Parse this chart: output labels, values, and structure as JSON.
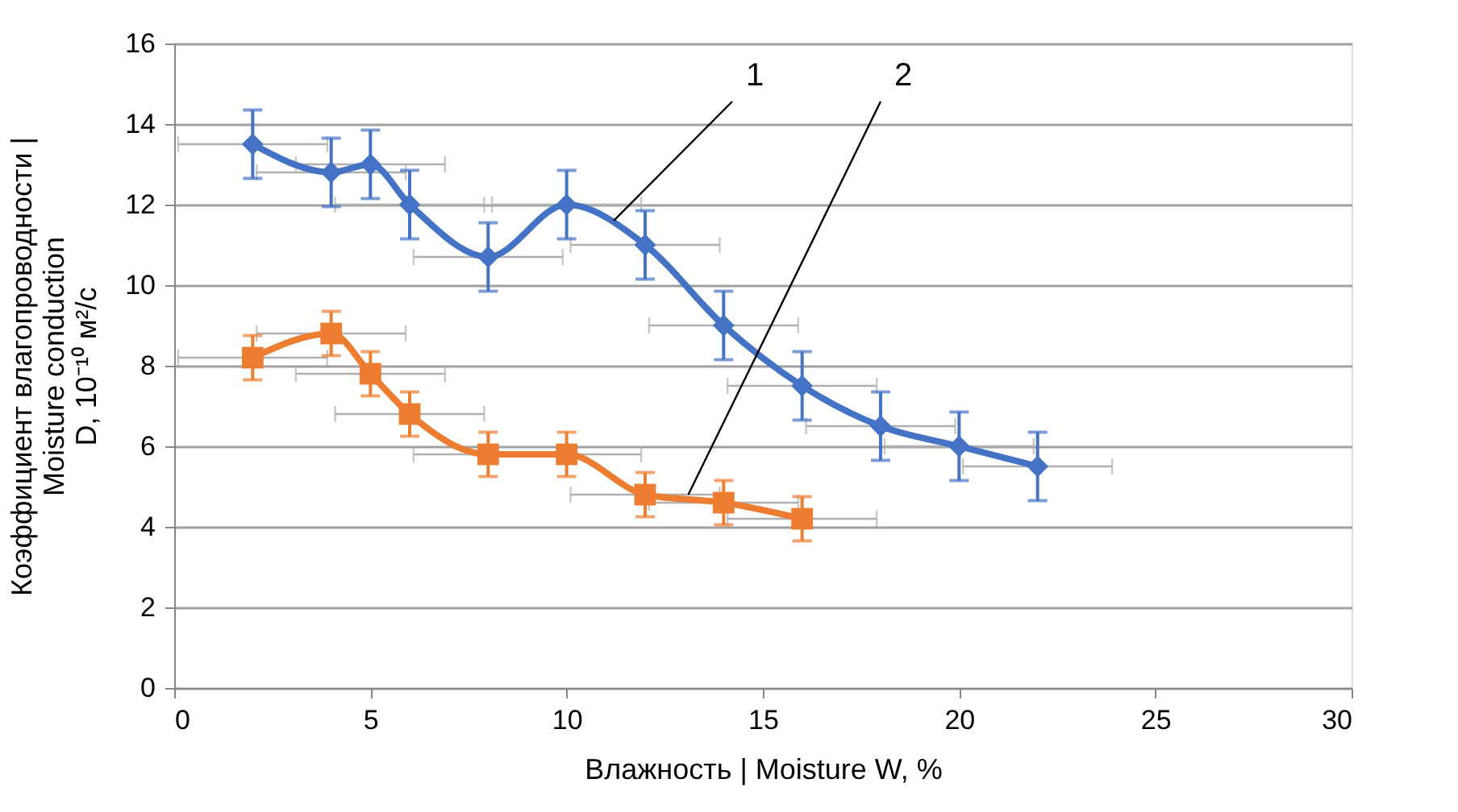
{
  "chart_data": {
    "type": "line",
    "xlabel": "Влажность | Moisture W, %",
    "ylabel": "Коэффициент влагопроводности |\nMoisture conduction\nD,  10⁻¹⁰  м²/с",
    "xlim": [
      0,
      30
    ],
    "xticks": [
      0,
      5,
      10,
      15,
      20,
      25,
      30
    ],
    "ylim": [
      0,
      16
    ],
    "yticks": [
      0,
      2,
      4,
      6,
      8,
      10,
      12,
      14,
      16
    ],
    "grid": "y",
    "series": [
      {
        "color": "#4472c4",
        "marker": "diamond",
        "x": [
          2,
          4,
          5,
          6,
          8,
          10,
          12,
          14,
          16,
          18,
          20,
          22
        ],
        "values": [
          13.5,
          12.8,
          13,
          12,
          10.7,
          12,
          11,
          9,
          7.5,
          6.5,
          6,
          5.5
        ],
        "errors": [
          0.85,
          0.85,
          0.85,
          0.85,
          0.85,
          0.85,
          0.85,
          0.85,
          0.85,
          0.85,
          0.85,
          0.85
        ],
        "xerrors": [
          1.9,
          1.9,
          1.9,
          1.9,
          1.9,
          1.9,
          1.9,
          1.9,
          1.9,
          1.9,
          1.9,
          1.9
        ]
      },
      {
        "color": "#ed7d31",
        "marker": "square",
        "x": [
          2,
          4,
          5,
          6,
          8,
          10,
          12,
          14,
          16
        ],
        "values": [
          8.2,
          8.8,
          7.8,
          6.8,
          5.8,
          5.8,
          4.8,
          4.6,
          4.2
        ],
        "errors": [
          0.55,
          0.55,
          0.55,
          0.55,
          0.55,
          0.55,
          0.55,
          0.55,
          0.55
        ],
        "xerrors": [
          1.9,
          1.9,
          1.9,
          1.9,
          1.9,
          1.9,
          1.9,
          1.9,
          1.9
        ]
      }
    ],
    "annotations": [
      {
        "text": "1",
        "x": 11.2,
        "y": 11.6
      },
      {
        "text": "2",
        "x": 13.1,
        "y": 4.8
      }
    ]
  }
}
